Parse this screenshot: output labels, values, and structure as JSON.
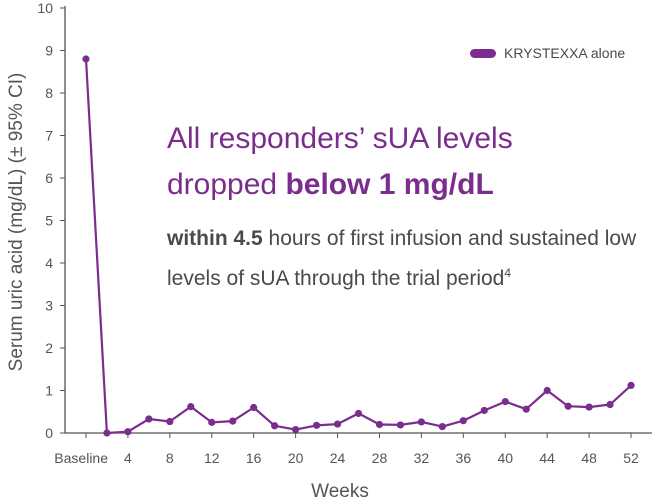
{
  "chart_data": {
    "type": "line",
    "xlabel": "Weeks",
    "ylabel": "Serum uric acid (mg/dL) (± 95% CI)",
    "ylim": [
      0,
      10
    ],
    "y_ticks": [
      "0",
      "1",
      "2",
      "3",
      "4",
      "5",
      "6",
      "7",
      "8",
      "9",
      "10"
    ],
    "x_tick_labels": [
      "Baseline",
      "4",
      "8",
      "12",
      "16",
      "20",
      "24",
      "28",
      "32",
      "36",
      "40",
      "44",
      "48",
      "52"
    ],
    "grid": false,
    "legend_position": "top-right",
    "series": [
      {
        "name": "KRYSTEXXA alone",
        "color": "#7b2d8e",
        "points": [
          {
            "week": 0,
            "value": 8.8
          },
          {
            "week": 2,
            "value": 0.0
          },
          {
            "week": 4,
            "value": 0.03
          },
          {
            "week": 6,
            "value": 0.33
          },
          {
            "week": 8,
            "value": 0.27
          },
          {
            "week": 10,
            "value": 0.62
          },
          {
            "week": 12,
            "value": 0.25
          },
          {
            "week": 14,
            "value": 0.28
          },
          {
            "week": 16,
            "value": 0.6
          },
          {
            "week": 18,
            "value": 0.17
          },
          {
            "week": 20,
            "value": 0.08
          },
          {
            "week": 22,
            "value": 0.18
          },
          {
            "week": 24,
            "value": 0.21
          },
          {
            "week": 26,
            "value": 0.46
          },
          {
            "week": 28,
            "value": 0.2
          },
          {
            "week": 30,
            "value": 0.19
          },
          {
            "week": 32,
            "value": 0.26
          },
          {
            "week": 34,
            "value": 0.15
          },
          {
            "week": 36,
            "value": 0.29
          },
          {
            "week": 38,
            "value": 0.53
          },
          {
            "week": 40,
            "value": 0.74
          },
          {
            "week": 42,
            "value": 0.56
          },
          {
            "week": 44,
            "value": 1.0
          },
          {
            "week": 46,
            "value": 0.63
          },
          {
            "week": 48,
            "value": 0.61
          },
          {
            "week": 50,
            "value": 0.67
          },
          {
            "week": 52,
            "value": 1.12
          }
        ]
      }
    ]
  },
  "colors": {
    "accent": "#7b2d8e",
    "axis": "#555555"
  },
  "callout": {
    "headline_line1": "All responders’ sUA levels",
    "headline_line2_prefix": "dropped ",
    "headline_line2_bold": "below 1 mg/dL",
    "sub_bold": "within 4.5",
    "sub_rest": " hours of first infusion and sustained low levels of sUA through the trial period",
    "sub_ref": "4"
  }
}
